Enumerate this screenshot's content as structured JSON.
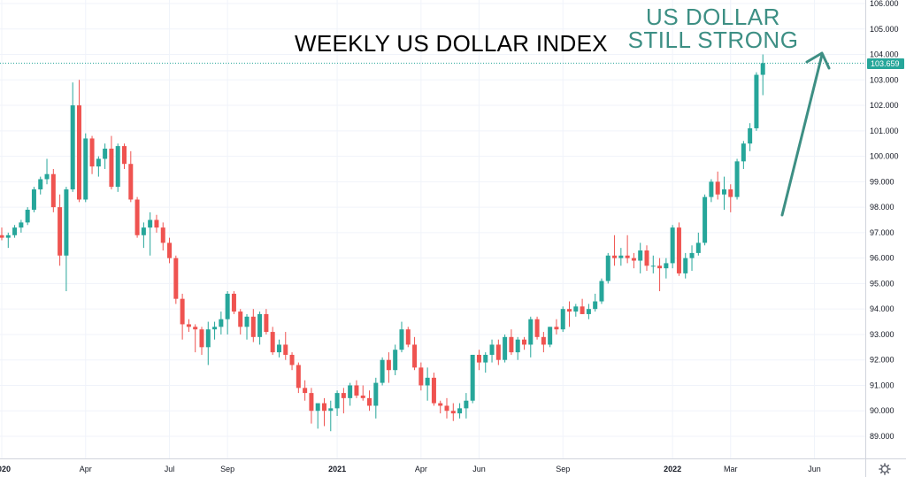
{
  "chart_data": {
    "type": "candlestick",
    "title": "WEEKLY US DOLLAR INDEX",
    "annotation": [
      "US DOLLAR",
      "STILL STRONG"
    ],
    "ylim": [
      88.5,
      106.0
    ],
    "y_ticks": [
      "89.000",
      "90.000",
      "91.000",
      "92.000",
      "93.000",
      "94.000",
      "95.000",
      "96.000",
      "97.000",
      "98.000",
      "99.000",
      "100.000",
      "101.000",
      "102.000",
      "103.000",
      "104.000",
      "105.000",
      "106.000"
    ],
    "current_price": "103.659",
    "x_labels": [
      {
        "text": "2020",
        "index": 0,
        "bold": true
      },
      {
        "text": "Apr",
        "index": 13,
        "bold": false
      },
      {
        "text": "Jul",
        "index": 26,
        "bold": false
      },
      {
        "text": "Sep",
        "index": 35,
        "bold": false
      },
      {
        "text": "2021",
        "index": 52,
        "bold": true
      },
      {
        "text": "Apr",
        "index": 65,
        "bold": false
      },
      {
        "text": "Jun",
        "index": 74,
        "bold": false
      },
      {
        "text": "Sep",
        "index": 87,
        "bold": false
      },
      {
        "text": "2022",
        "index": 104,
        "bold": true
      },
      {
        "text": "Mar",
        "index": 113,
        "bold": false
      },
      {
        "text": "Jun",
        "index": 126,
        "bold": false
      }
    ],
    "candles": [
      [
        96.9,
        97.2,
        96.7,
        96.8
      ],
      [
        96.8,
        97.0,
        96.4,
        96.9
      ],
      [
        96.9,
        97.3,
        96.8,
        97.2
      ],
      [
        97.2,
        97.5,
        97.0,
        97.4
      ],
      [
        97.4,
        98.0,
        97.3,
        97.9
      ],
      [
        97.9,
        98.8,
        97.8,
        98.7
      ],
      [
        98.7,
        99.2,
        98.5,
        99.1
      ],
      [
        99.1,
        99.9,
        98.9,
        99.3
      ],
      [
        99.3,
        99.5,
        97.8,
        98.0
      ],
      [
        98.0,
        98.5,
        95.7,
        96.1
      ],
      [
        96.1,
        98.8,
        94.7,
        98.7
      ],
      [
        98.7,
        102.9,
        98.6,
        102.0
      ],
      [
        102.0,
        103.0,
        98.2,
        98.3
      ],
      [
        98.3,
        100.9,
        98.2,
        100.7
      ],
      [
        100.7,
        100.8,
        99.3,
        99.6
      ],
      [
        99.6,
        100.0,
        99.2,
        99.9
      ],
      [
        99.9,
        100.5,
        99.5,
        100.3
      ],
      [
        100.3,
        100.8,
        98.7,
        98.8
      ],
      [
        98.8,
        100.5,
        98.6,
        100.4
      ],
      [
        100.4,
        100.5,
        99.5,
        99.7
      ],
      [
        99.7,
        100.2,
        98.2,
        98.3
      ],
      [
        98.3,
        98.4,
        96.8,
        96.9
      ],
      [
        96.9,
        97.4,
        96.4,
        97.2
      ],
      [
        97.2,
        97.8,
        96.1,
        97.5
      ],
      [
        97.5,
        97.7,
        97.0,
        97.2
      ],
      [
        97.2,
        97.4,
        96.3,
        96.6
      ],
      [
        96.6,
        96.8,
        95.8,
        96.0
      ],
      [
        96.0,
        96.1,
        94.2,
        94.4
      ],
      [
        94.4,
        94.6,
        92.8,
        93.4
      ],
      [
        93.4,
        93.6,
        93.1,
        93.3
      ],
      [
        93.3,
        93.4,
        92.3,
        93.2
      ],
      [
        93.2,
        93.3,
        92.2,
        92.5
      ],
      [
        92.5,
        93.5,
        91.8,
        93.2
      ],
      [
        93.2,
        93.5,
        92.8,
        93.3
      ],
      [
        93.3,
        93.9,
        93.0,
        93.6
      ],
      [
        93.6,
        94.7,
        93.0,
        94.6
      ],
      [
        94.6,
        94.7,
        93.8,
        93.9
      ],
      [
        93.9,
        94.0,
        93.0,
        93.3
      ],
      [
        93.3,
        93.8,
        92.8,
        93.7
      ],
      [
        93.7,
        94.0,
        92.7,
        92.9
      ],
      [
        92.9,
        93.9,
        92.6,
        93.8
      ],
      [
        93.8,
        94.0,
        93.0,
        93.1
      ],
      [
        93.1,
        93.3,
        92.2,
        92.3
      ],
      [
        92.3,
        92.8,
        92.1,
        92.6
      ],
      [
        92.6,
        93.1,
        92.0,
        92.2
      ],
      [
        92.2,
        92.3,
        91.6,
        91.8
      ],
      [
        91.8,
        91.9,
        90.7,
        90.9
      ],
      [
        90.9,
        91.2,
        90.4,
        90.7
      ],
      [
        90.7,
        90.9,
        89.5,
        90.0
      ],
      [
        90.0,
        90.2,
        89.3,
        90.3
      ],
      [
        90.3,
        90.5,
        89.4,
        90.0
      ],
      [
        90.0,
        90.4,
        89.2,
        90.1
      ],
      [
        90.1,
        90.8,
        89.8,
        90.7
      ],
      [
        90.7,
        90.9,
        89.9,
        90.5
      ],
      [
        90.5,
        91.1,
        90.2,
        91.0
      ],
      [
        91.0,
        91.2,
        90.5,
        90.6
      ],
      [
        90.6,
        91.0,
        90.4,
        90.5
      ],
      [
        90.5,
        90.8,
        90.0,
        90.2
      ],
      [
        90.2,
        91.3,
        89.7,
        91.1
      ],
      [
        91.1,
        92.1,
        91.0,
        92.0
      ],
      [
        92.0,
        92.3,
        91.1,
        91.6
      ],
      [
        91.6,
        92.6,
        91.4,
        92.4
      ],
      [
        92.4,
        93.5,
        92.3,
        93.2
      ],
      [
        93.2,
        93.3,
        92.5,
        92.6
      ],
      [
        92.6,
        92.9,
        91.6,
        91.7
      ],
      [
        91.7,
        91.9,
        90.8,
        91.0
      ],
      [
        91.0,
        91.7,
        90.4,
        91.3
      ],
      [
        91.3,
        91.5,
        90.2,
        90.3
      ],
      [
        90.3,
        90.4,
        89.9,
        90.2
      ],
      [
        90.2,
        90.5,
        89.7,
        90.0
      ],
      [
        90.0,
        90.3,
        89.6,
        89.9
      ],
      [
        89.9,
        90.3,
        89.7,
        90.1
      ],
      [
        90.1,
        90.7,
        89.7,
        90.4
      ],
      [
        90.4,
        92.2,
        90.3,
        92.2
      ],
      [
        92.2,
        92.4,
        91.6,
        91.9
      ],
      [
        91.9,
        92.3,
        91.5,
        92.2
      ],
      [
        92.2,
        92.8,
        91.9,
        92.6
      ],
      [
        92.6,
        92.8,
        91.8,
        92.0
      ],
      [
        92.0,
        93.0,
        91.9,
        92.9
      ],
      [
        92.9,
        93.2,
        92.2,
        92.3
      ],
      [
        92.3,
        92.9,
        92.0,
        92.8
      ],
      [
        92.8,
        92.9,
        92.4,
        92.6
      ],
      [
        92.6,
        93.7,
        92.1,
        93.6
      ],
      [
        93.6,
        93.7,
        92.8,
        92.9
      ],
      [
        92.9,
        93.1,
        92.3,
        92.6
      ],
      [
        92.6,
        93.3,
        92.5,
        93.3
      ],
      [
        93.3,
        93.6,
        93.0,
        93.2
      ],
      [
        93.2,
        94.1,
        93.1,
        94.0
      ],
      [
        94.0,
        94.3,
        93.3,
        93.9
      ],
      [
        93.9,
        94.2,
        93.7,
        94.1
      ],
      [
        94.1,
        94.4,
        93.8,
        93.8
      ],
      [
        93.8,
        94.2,
        93.6,
        94.0
      ],
      [
        94.0,
        94.6,
        93.9,
        94.3
      ],
      [
        94.3,
        95.2,
        94.2,
        95.1
      ],
      [
        95.1,
        96.2,
        95.0,
        96.1
      ],
      [
        96.1,
        96.9,
        95.7,
        96.0
      ],
      [
        96.0,
        96.4,
        95.7,
        96.1
      ],
      [
        96.1,
        96.9,
        95.8,
        96.0
      ],
      [
        96.0,
        96.2,
        95.6,
        95.9
      ],
      [
        95.9,
        96.6,
        95.4,
        96.3
      ],
      [
        96.3,
        96.5,
        95.5,
        95.7
      ],
      [
        95.7,
        96.1,
        95.4,
        95.7
      ],
      [
        95.7,
        96.0,
        94.7,
        95.6
      ],
      [
        95.6,
        96.0,
        95.2,
        95.8
      ],
      [
        95.8,
        97.3,
        95.6,
        97.2
      ],
      [
        97.2,
        97.4,
        95.3,
        95.4
      ],
      [
        95.4,
        96.2,
        95.2,
        96.0
      ],
      [
        96.0,
        96.5,
        95.5,
        96.2
      ],
      [
        96.2,
        97.0,
        96.1,
        96.6
      ],
      [
        96.6,
        98.5,
        96.5,
        98.4
      ],
      [
        98.4,
        99.1,
        98.2,
        99.0
      ],
      [
        99.0,
        99.4,
        98.3,
        98.5
      ],
      [
        98.5,
        99.2,
        97.9,
        98.7
      ],
      [
        98.7,
        98.9,
        97.8,
        98.4
      ],
      [
        98.4,
        99.9,
        98.3,
        99.8
      ],
      [
        99.8,
        100.6,
        99.5,
        100.5
      ],
      [
        100.5,
        101.3,
        100.2,
        101.1
      ],
      [
        101.1,
        103.3,
        101.0,
        103.2
      ],
      [
        103.2,
        104.0,
        102.4,
        103.659
      ]
    ]
  }
}
